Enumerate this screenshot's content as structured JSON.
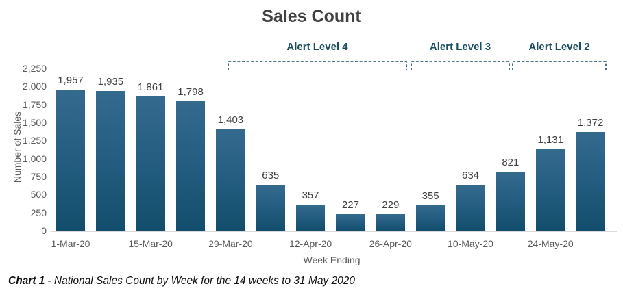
{
  "chart_data": {
    "type": "bar",
    "title": "Sales Count",
    "xlabel": "Week Ending",
    "ylabel": "Number of Sales",
    "ylim": [
      0,
      2250
    ],
    "grid": false,
    "values": [
      1957,
      1935,
      1861,
      1798,
      1403,
      635,
      357,
      227,
      229,
      355,
      634,
      821,
      1131,
      1372
    ],
    "data_labels": [
      "1,957",
      "1,935",
      "1,861",
      "1,798",
      "1,403",
      "635",
      "357",
      "227",
      "229",
      "355",
      "634",
      "821",
      "1,131",
      "1,372"
    ],
    "x_tick_labels": [
      "1-Mar-20",
      "15-Mar-20",
      "29-Mar-20",
      "12-Apr-20",
      "26-Apr-20",
      "10-May-20",
      "24-May-20"
    ],
    "x_tick_bar_indexes": [
      0,
      2,
      4,
      6,
      8,
      10,
      12
    ],
    "y_ticks": [
      "0",
      "250",
      "500",
      "750",
      "1,000",
      "1,250",
      "1,500",
      "1,750",
      "2,000",
      "2,250"
    ],
    "annotations": [
      {
        "label": "Alert Level 4",
        "start_bar": 4,
        "end_bar": 8
      },
      {
        "label": "Alert Level 3",
        "start_bar": 9,
        "end_bar": 11
      },
      {
        "label": "Alert Level 2",
        "start_bar": 12,
        "end_bar": 13
      }
    ]
  },
  "caption": {
    "prefix": "Chart 1",
    "text": "- National Sales Count by Week for the 14 weeks to 31 May 2020"
  },
  "colors": {
    "bar_top": "#346a8d",
    "bar_bottom": "#124e6c",
    "annotation": "#1a4e60",
    "title_text": "#404040",
    "axis_text": "#595959",
    "data_label_text": "#404040",
    "axis_line": "#d9d9d9"
  }
}
